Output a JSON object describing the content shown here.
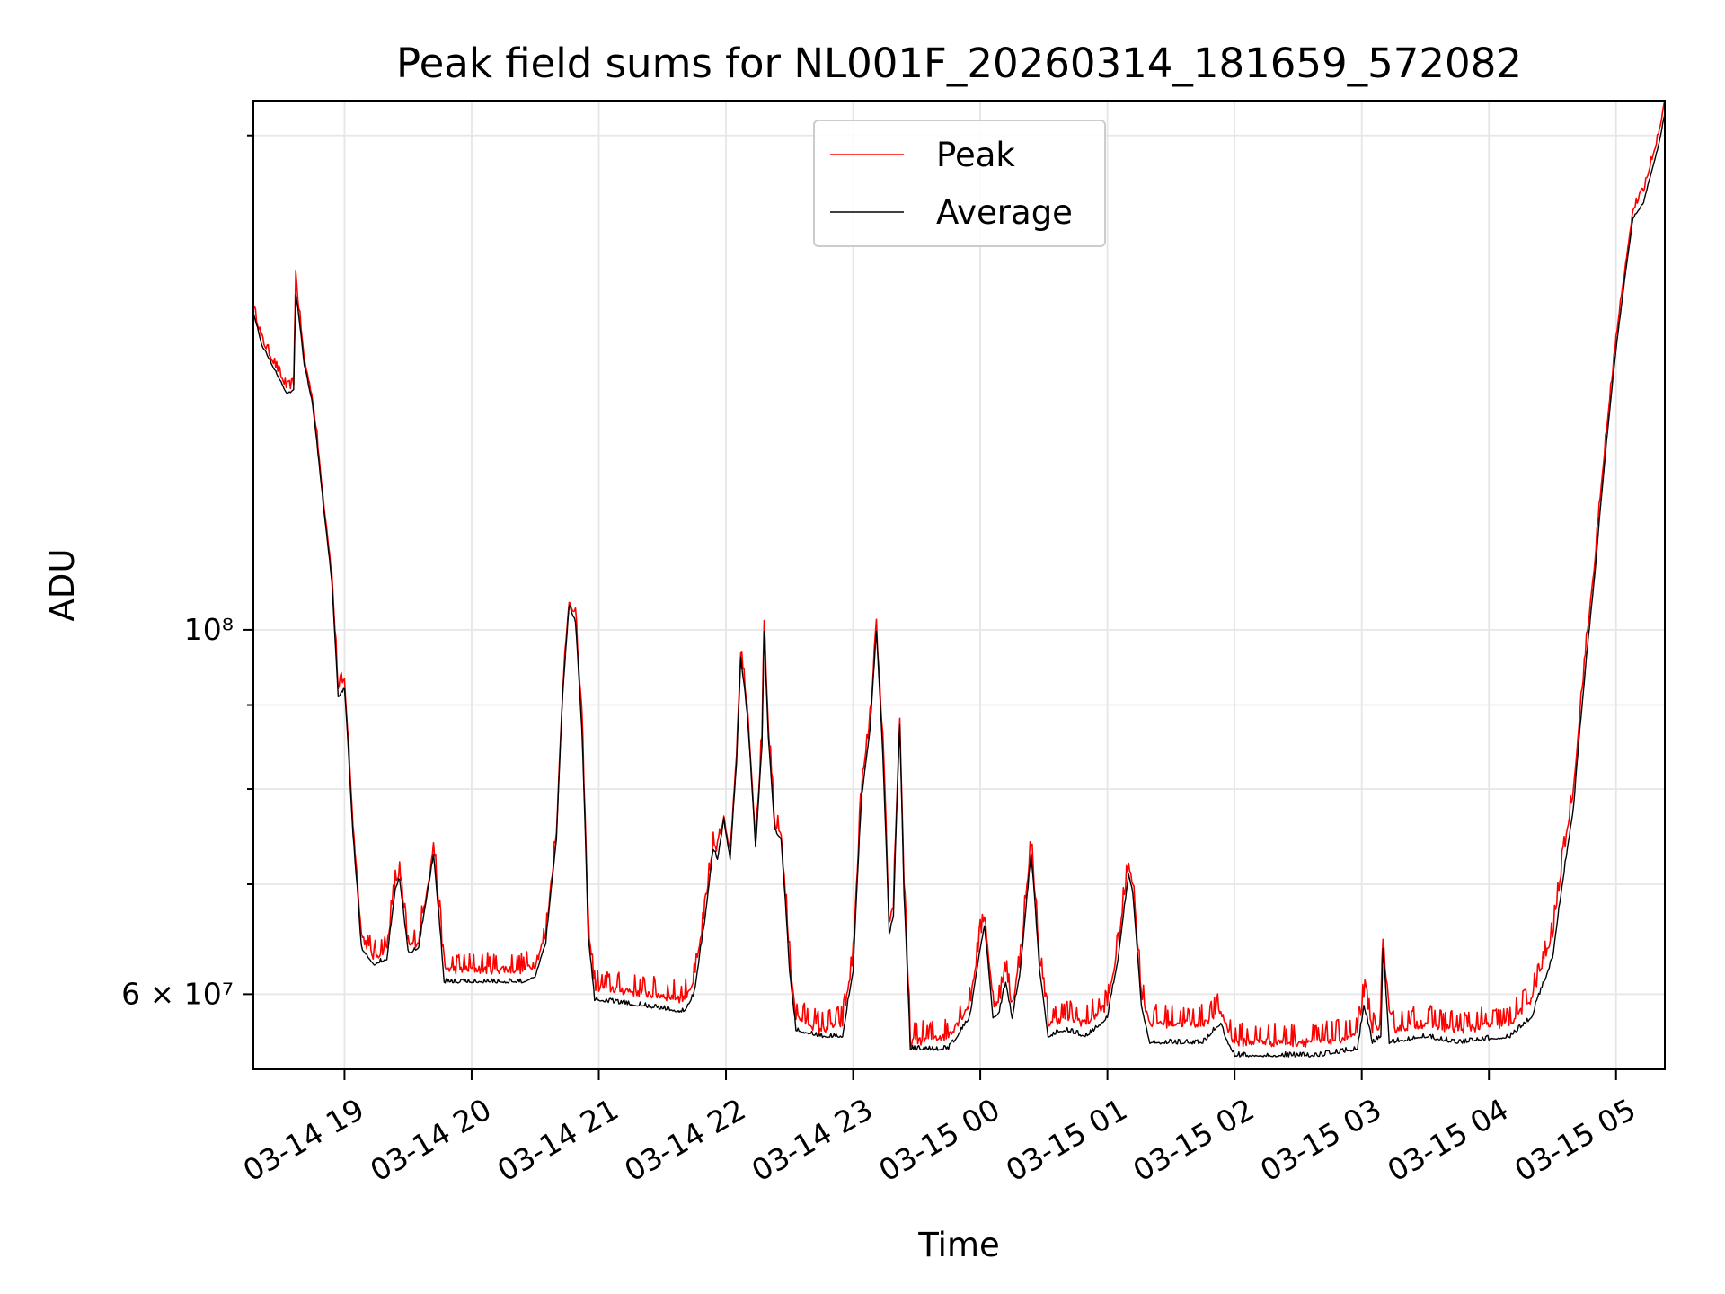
{
  "chart_data": {
    "type": "line",
    "title": "Peak field sums for NL001F_20260314_181659_572082",
    "xlabel": "Time",
    "ylabel": "ADU",
    "y_scale": "log",
    "ylim": [
      54000000,
      210000000
    ],
    "xlim": [
      "2026-03-14 18:17",
      "2026-03-15 05:23"
    ],
    "grid": true,
    "legend_position": "upper-center",
    "x_ticks": [
      {
        "t": "2026-03-14 19:00",
        "label": "03-14 19"
      },
      {
        "t": "2026-03-14 20:00",
        "label": "03-14 20"
      },
      {
        "t": "2026-03-14 21:00",
        "label": "03-14 21"
      },
      {
        "t": "2026-03-14 22:00",
        "label": "03-14 22"
      },
      {
        "t": "2026-03-14 23:00",
        "label": "03-14 23"
      },
      {
        "t": "2026-03-15 00:00",
        "label": "03-15 00"
      },
      {
        "t": "2026-03-15 01:00",
        "label": "03-15 01"
      },
      {
        "t": "2026-03-15 02:00",
        "label": "03-15 02"
      },
      {
        "t": "2026-03-15 03:00",
        "label": "03-15 03"
      },
      {
        "t": "2026-03-15 04:00",
        "label": "03-15 04"
      },
      {
        "t": "2026-03-15 05:00",
        "label": "03-15 05"
      }
    ],
    "y_major_ticks": [
      {
        "value": 60000000,
        "label": "6 × 10⁷"
      },
      {
        "value": 100000000,
        "label": "10⁸"
      }
    ],
    "y_minor_ticks": [
      70000000,
      80000000,
      90000000,
      200000000
    ],
    "series": [
      {
        "name": "Peak",
        "color": "#ff0000",
        "noise": 1500000,
        "points": [
          [
            "2026-03-14 18:17",
            157000000
          ],
          [
            "2026-03-14 18:21",
            150000000
          ],
          [
            "2026-03-14 18:27",
            145000000
          ],
          [
            "2026-03-14 18:33",
            140000000
          ],
          [
            "2026-03-14 18:36",
            141000000
          ],
          [
            "2026-03-14 18:37",
            165000000
          ],
          [
            "2026-03-14 18:38",
            159000000
          ],
          [
            "2026-03-14 18:41",
            146000000
          ],
          [
            "2026-03-14 18:45",
            138000000
          ],
          [
            "2026-03-14 18:50",
            120000000
          ],
          [
            "2026-03-14 18:54",
            108000000
          ],
          [
            "2026-03-14 18:57",
            92000000
          ],
          [
            "2026-03-14 19:00",
            93000000
          ],
          [
            "2026-03-14 19:04",
            76000000
          ],
          [
            "2026-03-14 19:08",
            65000000
          ],
          [
            "2026-03-14 19:14",
            63000000
          ],
          [
            "2026-03-14 19:20",
            64000000
          ],
          [
            "2026-03-14 19:24",
            70000000
          ],
          [
            "2026-03-14 19:26",
            71000000
          ],
          [
            "2026-03-14 19:30",
            64000000
          ],
          [
            "2026-03-14 19:35",
            64500000
          ],
          [
            "2026-03-14 19:41",
            72000000
          ],
          [
            "2026-03-14 19:42",
            74000000
          ],
          [
            "2026-03-14 19:47",
            62000000
          ],
          [
            "2026-03-14 20:00",
            62000000
          ],
          [
            "2026-03-14 20:25",
            62000000
          ],
          [
            "2026-03-14 20:30",
            62500000
          ],
          [
            "2026-03-14 20:35",
            65000000
          ],
          [
            "2026-03-14 20:40",
            75000000
          ],
          [
            "2026-03-14 20:43",
            92000000
          ],
          [
            "2026-03-14 20:46",
            104000000
          ],
          [
            "2026-03-14 20:49",
            102000000
          ],
          [
            "2026-03-14 20:52",
            88000000
          ],
          [
            "2026-03-14 20:55",
            66000000
          ],
          [
            "2026-03-14 20:58",
            60500000
          ],
          [
            "2026-03-14 21:20",
            60000000
          ],
          [
            "2026-03-14 21:40",
            59500000
          ],
          [
            "2026-03-14 21:45",
            61000000
          ],
          [
            "2026-03-14 21:50",
            67000000
          ],
          [
            "2026-03-14 21:54",
            74000000
          ],
          [
            "2026-03-14 21:56",
            73000000
          ],
          [
            "2026-03-14 21:59",
            77000000
          ],
          [
            "2026-03-14 22:02",
            73000000
          ],
          [
            "2026-03-14 22:05",
            84000000
          ],
          [
            "2026-03-14 22:07",
            97000000
          ],
          [
            "2026-03-14 22:10",
            90000000
          ],
          [
            "2026-03-14 22:14",
            74000000
          ],
          [
            "2026-03-14 22:17",
            86000000
          ],
          [
            "2026-03-14 22:18",
            100000000
          ],
          [
            "2026-03-14 22:20",
            87000000
          ],
          [
            "2026-03-14 22:23",
            76000000
          ],
          [
            "2026-03-14 22:26",
            75000000
          ],
          [
            "2026-03-14 22:30",
            63000000
          ],
          [
            "2026-03-14 22:33",
            58000000
          ],
          [
            "2026-03-14 22:45",
            57000000
          ],
          [
            "2026-03-14 22:55",
            57500000
          ],
          [
            "2026-03-14 23:00",
            63000000
          ],
          [
            "2026-03-14 23:04",
            80000000
          ],
          [
            "2026-03-14 23:08",
            88000000
          ],
          [
            "2026-03-14 23:11",
            100000000
          ],
          [
            "2026-03-14 23:14",
            85000000
          ],
          [
            "2026-03-14 23:17",
            66000000
          ],
          [
            "2026-03-14 23:19",
            68000000
          ],
          [
            "2026-03-14 23:22",
            88000000
          ],
          [
            "2026-03-14 23:24",
            70000000
          ],
          [
            "2026-03-14 23:27",
            56000000
          ],
          [
            "2026-03-14 23:45",
            56500000
          ],
          [
            "2026-03-14 23:55",
            59000000
          ],
          [
            "2026-03-15 00:00",
            65000000
          ],
          [
            "2026-03-15 00:02",
            67000000
          ],
          [
            "2026-03-15 00:06",
            59000000
          ],
          [
            "2026-03-15 00:09",
            59500000
          ],
          [
            "2026-03-15 00:12",
            62000000
          ],
          [
            "2026-03-15 00:15",
            59000000
          ],
          [
            "2026-03-15 00:19",
            63000000
          ],
          [
            "2026-03-15 00:24",
            74000000
          ],
          [
            "2026-03-15 00:28",
            63000000
          ],
          [
            "2026-03-15 00:32",
            57500000
          ],
          [
            "2026-03-15 00:40",
            58000000
          ],
          [
            "2026-03-15 00:50",
            57500000
          ],
          [
            "2026-03-15 01:00",
            59000000
          ],
          [
            "2026-03-15 01:05",
            64000000
          ],
          [
            "2026-03-15 01:10",
            72000000
          ],
          [
            "2026-03-15 01:12",
            70000000
          ],
          [
            "2026-03-15 01:16",
            60000000
          ],
          [
            "2026-03-15 01:20",
            57500000
          ],
          [
            "2026-03-15 01:45",
            57500000
          ],
          [
            "2026-03-15 01:53",
            58500000
          ],
          [
            "2026-03-15 01:57",
            57000000
          ],
          [
            "2026-03-15 02:00",
            56000000
          ],
          [
            "2026-03-15 02:40",
            56000000
          ],
          [
            "2026-03-15 02:58",
            56500000
          ],
          [
            "2026-03-15 03:01",
            60000000
          ],
          [
            "2026-03-15 03:05",
            57000000
          ],
          [
            "2026-03-15 03:09",
            57500000
          ],
          [
            "2026-03-15 03:10",
            65000000
          ],
          [
            "2026-03-15 03:13",
            57000000
          ],
          [
            "2026-03-15 03:30",
            57500000
          ],
          [
            "2026-03-15 03:45",
            57000000
          ],
          [
            "2026-03-15 04:10",
            57500000
          ],
          [
            "2026-03-15 04:20",
            59500000
          ],
          [
            "2026-03-15 04:30",
            65000000
          ],
          [
            "2026-03-15 04:40",
            80000000
          ],
          [
            "2026-03-15 04:50",
            110000000
          ],
          [
            "2026-03-15 05:00",
            150000000
          ],
          [
            "2026-03-15 05:08",
            180000000
          ],
          [
            "2026-03-15 05:13",
            185000000
          ],
          [
            "2026-03-15 05:20",
            200000000
          ],
          [
            "2026-03-15 05:23",
            210000000
          ]
        ]
      },
      {
        "name": "Average",
        "color": "#000000",
        "noise": 300000,
        "points": [
          [
            "2026-03-14 18:17",
            156000000
          ],
          [
            "2026-03-14 18:21",
            149000000
          ],
          [
            "2026-03-14 18:27",
            144000000
          ],
          [
            "2026-03-14 18:33",
            139000000
          ],
          [
            "2026-03-14 18:36",
            140000000
          ],
          [
            "2026-03-14 18:37",
            160000000
          ],
          [
            "2026-03-14 18:38",
            157000000
          ],
          [
            "2026-03-14 18:41",
            145000000
          ],
          [
            "2026-03-14 18:45",
            137000000
          ],
          [
            "2026-03-14 18:50",
            119000000
          ],
          [
            "2026-03-14 18:54",
            107000000
          ],
          [
            "2026-03-14 18:57",
            91000000
          ],
          [
            "2026-03-14 19:00",
            92000000
          ],
          [
            "2026-03-14 19:04",
            75000000
          ],
          [
            "2026-03-14 19:08",
            64000000
          ],
          [
            "2026-03-14 19:14",
            62500000
          ],
          [
            "2026-03-14 19:20",
            63000000
          ],
          [
            "2026-03-14 19:24",
            69500000
          ],
          [
            "2026-03-14 19:26",
            70500000
          ],
          [
            "2026-03-14 19:30",
            63500000
          ],
          [
            "2026-03-14 19:35",
            64000000
          ],
          [
            "2026-03-14 19:41",
            71500000
          ],
          [
            "2026-03-14 19:42",
            73000000
          ],
          [
            "2026-03-14 19:47",
            61000000
          ],
          [
            "2026-03-14 20:00",
            61000000
          ],
          [
            "2026-03-14 20:25",
            61000000
          ],
          [
            "2026-03-14 20:30",
            61500000
          ],
          [
            "2026-03-14 20:35",
            64500000
          ],
          [
            "2026-03-14 20:40",
            74500000
          ],
          [
            "2026-03-14 20:43",
            91500000
          ],
          [
            "2026-03-14 20:46",
            103500000
          ],
          [
            "2026-03-14 20:49",
            101000000
          ],
          [
            "2026-03-14 20:52",
            87000000
          ],
          [
            "2026-03-14 20:55",
            65000000
          ],
          [
            "2026-03-14 20:58",
            59500000
          ],
          [
            "2026-03-14 21:20",
            59000000
          ],
          [
            "2026-03-14 21:40",
            58500000
          ],
          [
            "2026-03-14 21:45",
            60000000
          ],
          [
            "2026-03-14 21:50",
            66500000
          ],
          [
            "2026-03-14 21:54",
            73500000
          ],
          [
            "2026-03-14 21:56",
            72500000
          ],
          [
            "2026-03-14 21:59",
            76500000
          ],
          [
            "2026-03-14 22:02",
            72500000
          ],
          [
            "2026-03-14 22:05",
            83000000
          ],
          [
            "2026-03-14 22:07",
            96000000
          ],
          [
            "2026-03-14 22:10",
            89000000
          ],
          [
            "2026-03-14 22:14",
            73500000
          ],
          [
            "2026-03-14 22:17",
            85000000
          ],
          [
            "2026-03-14 22:18",
            99500000
          ],
          [
            "2026-03-14 22:20",
            86000000
          ],
          [
            "2026-03-14 22:23",
            75500000
          ],
          [
            "2026-03-14 22:26",
            74500000
          ],
          [
            "2026-03-14 22:30",
            62000000
          ],
          [
            "2026-03-14 22:33",
            57000000
          ],
          [
            "2026-03-14 22:45",
            56500000
          ],
          [
            "2026-03-14 22:55",
            56500000
          ],
          [
            "2026-03-14 23:00",
            62000000
          ],
          [
            "2026-03-14 23:04",
            79000000
          ],
          [
            "2026-03-14 23:08",
            87000000
          ],
          [
            "2026-03-14 23:11",
            99500000
          ],
          [
            "2026-03-14 23:14",
            84000000
          ],
          [
            "2026-03-14 23:17",
            65000000
          ],
          [
            "2026-03-14 23:19",
            67000000
          ],
          [
            "2026-03-14 23:22",
            87500000
          ],
          [
            "2026-03-14 23:24",
            69000000
          ],
          [
            "2026-03-14 23:27",
            55500000
          ],
          [
            "2026-03-14 23:45",
            55500000
          ],
          [
            "2026-03-14 23:55",
            58000000
          ],
          [
            "2026-03-15 00:00",
            64000000
          ],
          [
            "2026-03-15 00:02",
            66000000
          ],
          [
            "2026-03-15 00:06",
            58000000
          ],
          [
            "2026-03-15 00:09",
            58500000
          ],
          [
            "2026-03-15 00:12",
            61000000
          ],
          [
            "2026-03-15 00:15",
            58000000
          ],
          [
            "2026-03-15 00:19",
            62000000
          ],
          [
            "2026-03-15 00:24",
            73000000
          ],
          [
            "2026-03-15 00:28",
            62000000
          ],
          [
            "2026-03-15 00:32",
            56500000
          ],
          [
            "2026-03-15 00:40",
            57000000
          ],
          [
            "2026-03-15 00:50",
            56500000
          ],
          [
            "2026-03-15 01:00",
            58000000
          ],
          [
            "2026-03-15 01:05",
            63000000
          ],
          [
            "2026-03-15 01:10",
            71000000
          ],
          [
            "2026-03-15 01:12",
            69000000
          ],
          [
            "2026-03-15 01:16",
            59000000
          ],
          [
            "2026-03-15 01:20",
            56000000
          ],
          [
            "2026-03-15 01:45",
            56000000
          ],
          [
            "2026-03-15 01:53",
            57500000
          ],
          [
            "2026-03-15 01:57",
            56000000
          ],
          [
            "2026-03-15 02:00",
            55000000
          ],
          [
            "2026-03-15 02:40",
            55000000
          ],
          [
            "2026-03-15 02:58",
            55500000
          ],
          [
            "2026-03-15 03:01",
            59000000
          ],
          [
            "2026-03-15 03:05",
            56000000
          ],
          [
            "2026-03-15 03:09",
            56500000
          ],
          [
            "2026-03-15 03:10",
            64000000
          ],
          [
            "2026-03-15 03:13",
            56000000
          ],
          [
            "2026-03-15 03:30",
            56500000
          ],
          [
            "2026-03-15 03:45",
            56000000
          ],
          [
            "2026-03-15 04:10",
            56500000
          ],
          [
            "2026-03-15 04:20",
            58000000
          ],
          [
            "2026-03-15 04:30",
            63000000
          ],
          [
            "2026-03-15 04:40",
            78000000
          ],
          [
            "2026-03-15 04:50",
            108000000
          ],
          [
            "2026-03-15 05:00",
            148000000
          ],
          [
            "2026-03-15 05:08",
            178000000
          ],
          [
            "2026-03-15 05:13",
            182000000
          ],
          [
            "2026-03-15 05:20",
            197000000
          ],
          [
            "2026-03-15 05:23",
            206000000
          ]
        ]
      }
    ]
  }
}
